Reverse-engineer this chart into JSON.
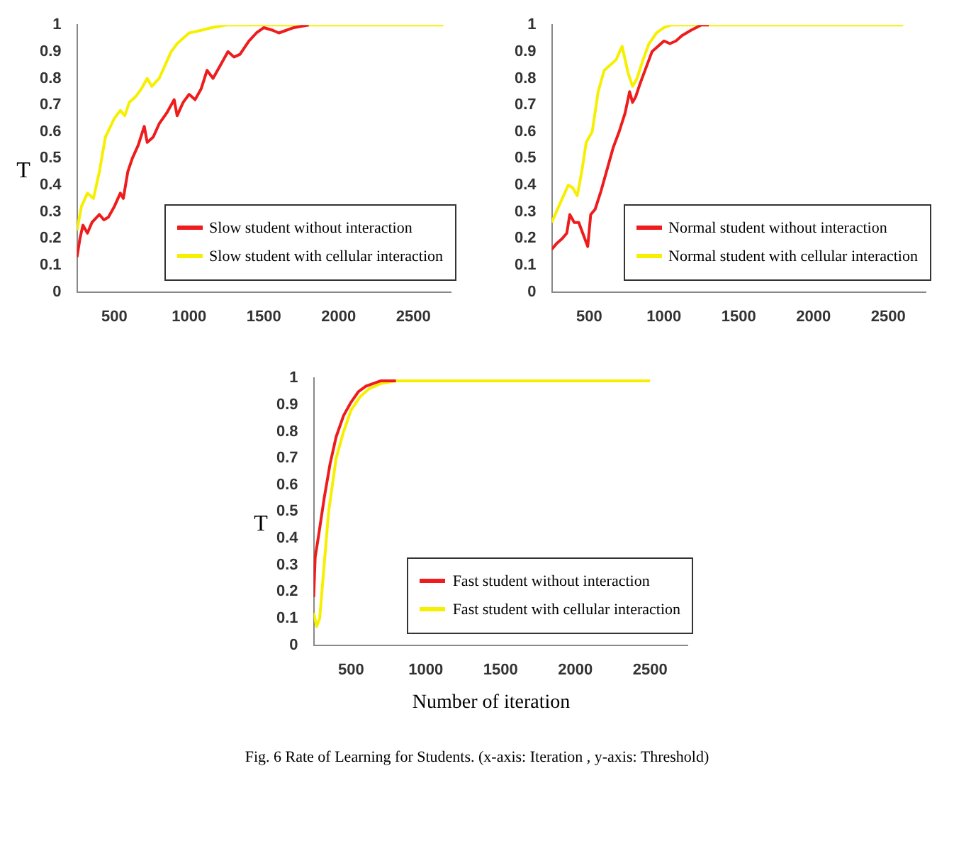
{
  "chart_data": [
    {
      "type": "line",
      "ylabel": "T",
      "xlim": [
        250,
        2750
      ],
      "xticks": [
        500,
        1000,
        1500,
        2000,
        2500
      ],
      "ylim": [
        0,
        1
      ],
      "yticks": [
        0,
        0.1,
        0.2,
        0.3,
        0.4,
        0.5,
        0.6,
        0.7,
        0.8,
        0.9,
        1
      ],
      "grid": false,
      "legend": "bottom right",
      "marker": "none",
      "line_style": "solid",
      "series": [
        {
          "name": "Slow student without interaction",
          "color": "#ee1c1c",
          "x": [
            250,
            270,
            290,
            320,
            350,
            400,
            430,
            460,
            500,
            540,
            560,
            590,
            620,
            660,
            700,
            720,
            760,
            800,
            850,
            900,
            920,
            960,
            1000,
            1040,
            1080,
            1120,
            1160,
            1200,
            1260,
            1300,
            1340,
            1400,
            1450,
            1500,
            1560,
            1600,
            1700,
            1800
          ],
          "values": [
            0.13,
            0.2,
            0.25,
            0.22,
            0.26,
            0.29,
            0.27,
            0.28,
            0.32,
            0.37,
            0.35,
            0.45,
            0.5,
            0.55,
            0.62,
            0.56,
            0.58,
            0.63,
            0.67,
            0.72,
            0.66,
            0.71,
            0.74,
            0.72,
            0.76,
            0.83,
            0.8,
            0.84,
            0.9,
            0.88,
            0.89,
            0.94,
            0.97,
            0.99,
            0.98,
            0.97,
            0.99,
            1.0
          ]
        },
        {
          "name": "Slow student with cellular interaction",
          "color": "#f6f000",
          "x": [
            250,
            280,
            320,
            360,
            400,
            440,
            500,
            540,
            570,
            600,
            640,
            680,
            720,
            750,
            800,
            840,
            880,
            920,
            960,
            1000,
            1080,
            1150,
            1250,
            2700
          ],
          "values": [
            0.23,
            0.32,
            0.37,
            0.35,
            0.45,
            0.58,
            0.65,
            0.68,
            0.66,
            0.71,
            0.73,
            0.76,
            0.8,
            0.77,
            0.8,
            0.85,
            0.9,
            0.93,
            0.95,
            0.97,
            0.98,
            0.99,
            1.0,
            1.0
          ]
        }
      ]
    },
    {
      "type": "line",
      "xlim": [
        250,
        2750
      ],
      "xticks": [
        500,
        1000,
        1500,
        2000,
        2500
      ],
      "ylim": [
        0,
        1
      ],
      "yticks": [
        0,
        0.1,
        0.2,
        0.3,
        0.4,
        0.5,
        0.6,
        0.7,
        0.8,
        0.9,
        1
      ],
      "grid": false,
      "legend": "bottom right",
      "marker": "none",
      "line_style": "solid",
      "series": [
        {
          "name": "Normal student without interaction",
          "color": "#ee1c1c",
          "x": [
            250,
            280,
            320,
            350,
            370,
            400,
            430,
            470,
            490,
            510,
            540,
            580,
            620,
            660,
            700,
            740,
            770,
            790,
            810,
            840,
            880,
            920,
            960,
            1000,
            1040,
            1080,
            1120,
            1180,
            1250,
            1300
          ],
          "values": [
            0.16,
            0.18,
            0.2,
            0.22,
            0.29,
            0.26,
            0.26,
            0.2,
            0.17,
            0.29,
            0.31,
            0.38,
            0.46,
            0.54,
            0.6,
            0.67,
            0.75,
            0.71,
            0.73,
            0.78,
            0.84,
            0.9,
            0.92,
            0.94,
            0.93,
            0.94,
            0.96,
            0.98,
            1.0,
            1.0
          ]
        },
        {
          "name": "Normal student with cellular interaction",
          "color": "#f6f000",
          "x": [
            250,
            280,
            320,
            360,
            390,
            420,
            450,
            480,
            520,
            560,
            600,
            640,
            680,
            720,
            760,
            790,
            820,
            860,
            900,
            950,
            1000,
            1050,
            2600
          ],
          "values": [
            0.26,
            0.3,
            0.35,
            0.4,
            0.39,
            0.36,
            0.45,
            0.56,
            0.6,
            0.75,
            0.83,
            0.85,
            0.87,
            0.92,
            0.82,
            0.77,
            0.8,
            0.87,
            0.93,
            0.97,
            0.99,
            1.0,
            1.0
          ]
        }
      ]
    },
    {
      "type": "line",
      "ylabel": "T",
      "xlabel": "Number of iteration",
      "annotations": [
        "Fig. 6 Rate of Learning for Students. (x-axis: Iteration ,  y-axis: Threshold)"
      ],
      "xlim": [
        250,
        2750
      ],
      "xticks": [
        500,
        1000,
        1500,
        2000,
        2500
      ],
      "ylim": [
        0,
        1
      ],
      "yticks": [
        0,
        0.1,
        0.2,
        0.3,
        0.4,
        0.5,
        0.6,
        0.7,
        0.8,
        0.9,
        1
      ],
      "grid": false,
      "legend": "bottom right",
      "marker": "none",
      "line_style": "solid",
      "series": [
        {
          "name": "Fast student without interaction",
          "color": "#ee1c1c",
          "x": [
            250,
            260,
            280,
            320,
            360,
            400,
            450,
            500,
            550,
            600,
            650,
            700,
            800
          ],
          "values": [
            0.18,
            0.33,
            0.4,
            0.55,
            0.68,
            0.78,
            0.86,
            0.91,
            0.95,
            0.97,
            0.98,
            0.99,
            0.99
          ]
        },
        {
          "name": "Fast student with cellular interaction",
          "color": "#f6f000",
          "x": [
            250,
            270,
            290,
            320,
            350,
            400,
            450,
            500,
            560,
            620,
            700,
            800,
            2500
          ],
          "values": [
            0.12,
            0.07,
            0.1,
            0.3,
            0.5,
            0.7,
            0.8,
            0.88,
            0.93,
            0.96,
            0.98,
            0.99,
            0.99
          ]
        }
      ]
    }
  ]
}
